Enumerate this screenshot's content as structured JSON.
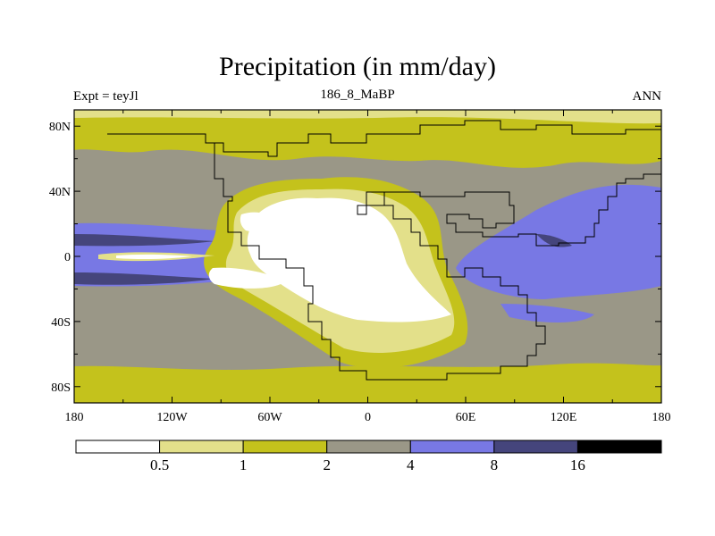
{
  "chart_data": {
    "type": "contour-map",
    "title": "Precipitation (in mm/day)",
    "subtitle_left": "Expt = teyJl",
    "subtitle_center": "186_8_MaBP",
    "subtitle_right": "ANN",
    "x_range": [
      -180,
      180
    ],
    "y_range": [
      -90,
      90
    ],
    "x_ticks": [
      {
        "value": -180,
        "label": "180"
      },
      {
        "value": -120,
        "label": "120W"
      },
      {
        "value": -60,
        "label": "60W"
      },
      {
        "value": 0,
        "label": "0"
      },
      {
        "value": 60,
        "label": "60E"
      },
      {
        "value": 120,
        "label": "120E"
      },
      {
        "value": 180,
        "label": "180"
      }
    ],
    "y_ticks": [
      {
        "value": 80,
        "label": "80N"
      },
      {
        "value": 40,
        "label": "40N"
      },
      {
        "value": 0,
        "label": "0"
      },
      {
        "value": -40,
        "label": "40S"
      },
      {
        "value": -80,
        "label": "80S"
      }
    ],
    "levels": [
      {
        "range": "<0.5",
        "color": "#ffffff"
      },
      {
        "range": "0.5-1",
        "color": "#e3e08a"
      },
      {
        "range": "1-2",
        "color": "#c4c21c"
      },
      {
        "range": "2-4",
        "color": "#9a9787"
      },
      {
        "range": "4-8",
        "color": "#7878e4"
      },
      {
        "range": "8-16",
        "color": "#45457c"
      },
      {
        "range": ">16",
        "color": "#000000"
      }
    ],
    "colorbar_labels": [
      "0.5",
      "1",
      "2",
      "4",
      "8",
      "16"
    ]
  }
}
